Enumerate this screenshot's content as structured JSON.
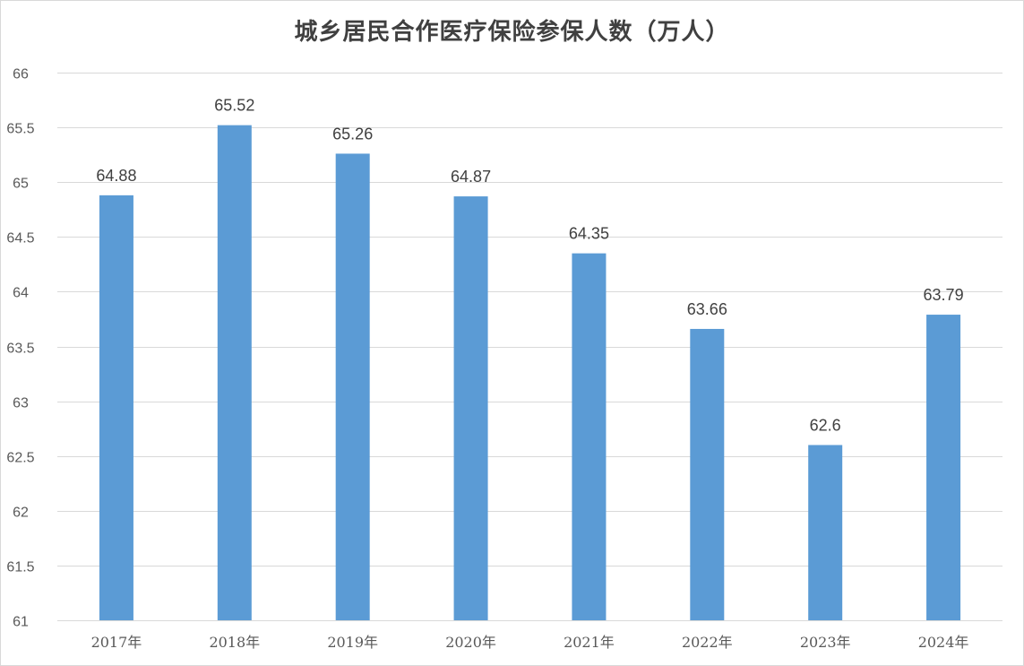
{
  "chart_data": {
    "type": "bar",
    "title": "城乡居民合作医疗保险参保人数（万人）",
    "xlabel": "",
    "ylabel": "",
    "categories": [
      "2017年",
      "2018年",
      "2019年",
      "2020年",
      "2021年",
      "2022年",
      "2023年",
      "2024年"
    ],
    "values": [
      64.88,
      65.52,
      65.26,
      64.87,
      64.35,
      63.66,
      62.6,
      63.79
    ],
    "data_labels": [
      "64.88",
      "65.52",
      "65.26",
      "64.87",
      "64.35",
      "63.66",
      "62.6",
      "63.79"
    ],
    "ylim": [
      61,
      66
    ],
    "yticks": [
      61,
      61.5,
      62,
      62.5,
      63,
      63.5,
      64,
      64.5,
      65,
      65.5,
      66
    ],
    "ytick_labels": [
      "61",
      "61.5",
      "62",
      "62.5",
      "63",
      "63.5",
      "64",
      "64.5",
      "65",
      "65.5",
      "66"
    ],
    "grid": true,
    "legend": "none",
    "bar_color": "#5b9bd5",
    "grid_color": "#d9d9d9"
  }
}
